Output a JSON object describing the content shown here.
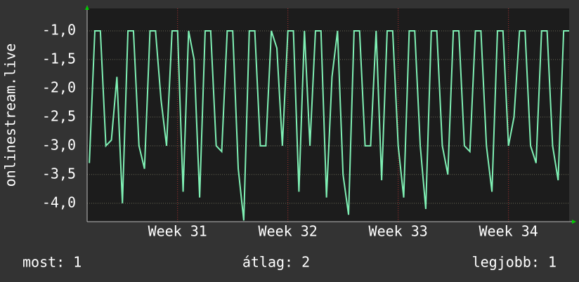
{
  "chart_data": {
    "type": "line",
    "y_label": "onlinestream.live",
    "xlim": [
      30.18,
      34.55
    ],
    "xticks": [
      {
        "value": 31,
        "label": "Week 31"
      },
      {
        "value": 32,
        "label": "Week 32"
      },
      {
        "value": 33,
        "label": "Week 33"
      },
      {
        "value": 34,
        "label": "Week 34"
      }
    ],
    "ylim": [
      -4.32,
      -0.61
    ],
    "yticks": [
      {
        "value": -1,
        "label": "-1,0"
      },
      {
        "value": -1.5,
        "label": "-1,5"
      },
      {
        "value": -2,
        "label": "-2,0"
      },
      {
        "value": -2.5,
        "label": "-2,5"
      },
      {
        "value": -3,
        "label": "-3,0"
      },
      {
        "value": -3.5,
        "label": "-3,5"
      },
      {
        "value": -4,
        "label": "-4,0"
      }
    ],
    "grid": true,
    "series": [
      {
        "color": "#7ff0b4",
        "x": [
          30.2,
          30.25,
          30.3,
          30.35,
          30.4,
          30.45,
          30.5,
          30.55,
          30.6,
          30.65,
          30.7,
          30.75,
          30.8,
          30.85,
          30.9,
          30.95,
          31,
          31.05,
          31.1,
          31.15,
          31.2,
          31.25,
          31.3,
          31.35,
          31.4,
          31.45,
          31.5,
          31.55,
          31.6,
          31.65,
          31.7,
          31.75,
          31.8,
          31.85,
          31.9,
          31.95,
          32,
          32.05,
          32.1,
          32.15,
          32.2,
          32.25,
          32.3,
          32.35,
          32.4,
          32.45,
          32.5,
          32.55,
          32.6,
          32.65,
          32.7,
          32.75,
          32.8,
          32.85,
          32.9,
          32.95,
          33,
          33.05,
          33.1,
          33.15,
          33.2,
          33.25,
          33.3,
          33.35,
          33.4,
          33.45,
          33.5,
          33.55,
          33.6,
          33.65,
          33.7,
          33.75,
          33.8,
          33.85,
          33.9,
          33.95,
          34,
          34.05,
          34.1,
          34.15,
          34.2,
          34.25,
          34.3,
          34.35,
          34.4,
          34.45,
          34.5,
          34.55
        ],
        "values": [
          -3.3,
          -1,
          -1,
          -3,
          -2.9,
          -1.8,
          -4,
          -1,
          -1,
          -3,
          -3.4,
          -1,
          -1,
          -2.2,
          -3,
          -1,
          -1,
          -3.8,
          -1,
          -1.5,
          -3.9,
          -1,
          -1,
          -3,
          -3.1,
          -1,
          -1,
          -3.4,
          -4.3,
          -1,
          -1,
          -3,
          -3,
          -1,
          -1.3,
          -3,
          -1,
          -1,
          -3.8,
          -1,
          -3,
          -1,
          -1,
          -3.9,
          -1.8,
          -1,
          -3.5,
          -4.2,
          -1,
          -1,
          -3,
          -3,
          -1,
          -3.6,
          -1,
          -1,
          -3,
          -3.9,
          -1,
          -1,
          -3,
          -4.1,
          -1,
          -1,
          -3,
          -3.5,
          -1,
          -1,
          -3,
          -3.1,
          -1,
          -1,
          -3,
          -3.8,
          -1,
          -1,
          -3,
          -2.5,
          -1,
          -1,
          -3,
          -3.3,
          -1,
          -1,
          -3,
          -3.6,
          -1,
          -1
        ]
      }
    ],
    "footer": {
      "current": "most: 1",
      "average": "átlag: 2",
      "best": "legjobb: 1"
    }
  }
}
